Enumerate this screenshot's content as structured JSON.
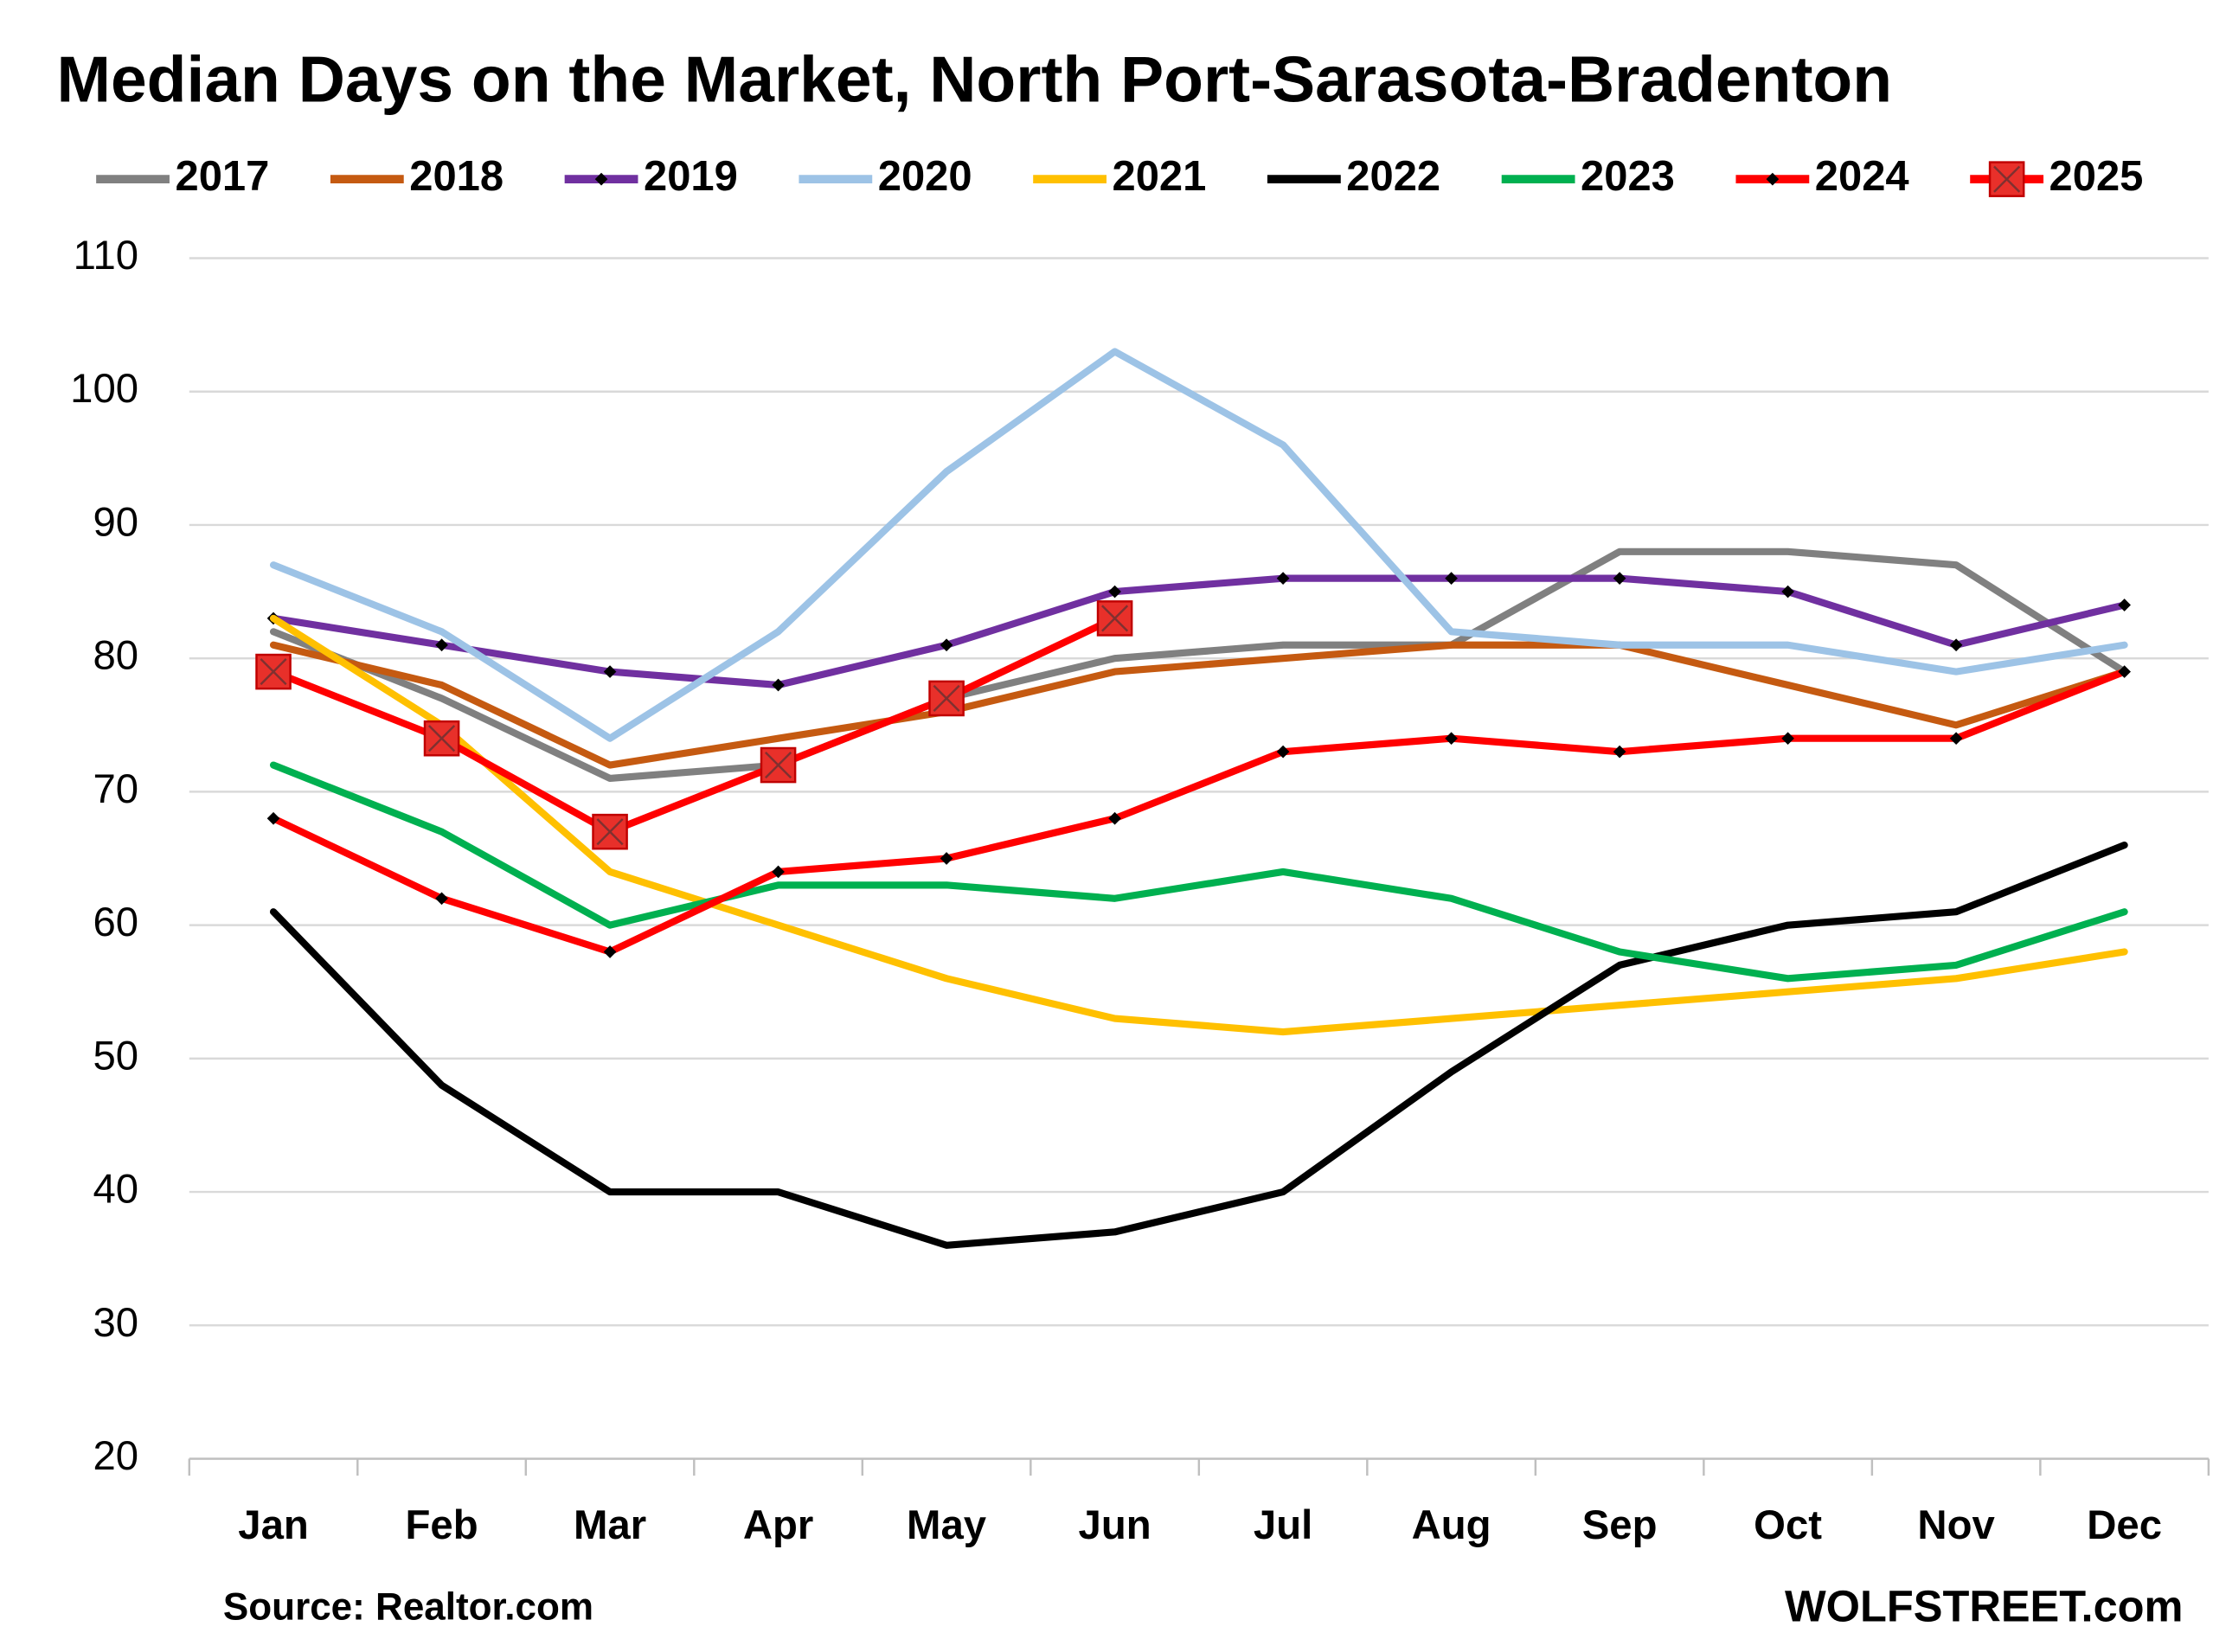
{
  "chart_data": {
    "type": "line",
    "title": "Median Days on the Market, North Port-Sarasota-Bradenton",
    "source": "Source: Realtor.com",
    "credit": "WOLFSTREET.com",
    "categories": [
      "Jan",
      "Feb",
      "Mar",
      "Apr",
      "May",
      "Jun",
      "Jul",
      "Aug",
      "Sep",
      "Oct",
      "Nov",
      "Dec"
    ],
    "ylim": [
      20,
      110
    ],
    "yticks": [
      20,
      30,
      40,
      50,
      60,
      70,
      80,
      90,
      100,
      110
    ],
    "grid": true,
    "legend": "top",
    "series": [
      {
        "name": "2017",
        "color": "#808080",
        "values": [
          82,
          77,
          71,
          72,
          77,
          80,
          81,
          81,
          88,
          88,
          87,
          79
        ]
      },
      {
        "name": "2018",
        "color": "#c55a11",
        "values": [
          81,
          78,
          72,
          74,
          76,
          79,
          80,
          81,
          81,
          78,
          75,
          79
        ]
      },
      {
        "name": "2019",
        "color": "#7030a0",
        "marker": "diamond",
        "values": [
          83,
          81,
          79,
          78,
          81,
          85,
          86,
          86,
          86,
          85,
          81,
          84
        ]
      },
      {
        "name": "2020",
        "color": "#9dc3e6",
        "values": [
          87,
          82,
          74,
          82,
          94,
          103,
          96,
          82,
          81,
          81,
          79,
          81
        ]
      },
      {
        "name": "2021",
        "color": "#ffc000",
        "values": [
          83,
          75,
          64,
          60,
          56,
          53,
          52,
          53,
          54,
          55,
          56,
          58
        ]
      },
      {
        "name": "2022",
        "color": "#000000",
        "values": [
          61,
          48,
          40,
          40,
          36,
          37,
          40,
          49,
          57,
          60,
          61,
          66
        ]
      },
      {
        "name": "2023",
        "color": "#00b050",
        "values": [
          72,
          67,
          60,
          63,
          63,
          62,
          64,
          62,
          58,
          56,
          57,
          61
        ]
      },
      {
        "name": "2024",
        "color": "#ff0000",
        "marker": "diamond",
        "values": [
          68,
          62,
          58,
          64,
          65,
          68,
          73,
          74,
          73,
          74,
          74,
          79
        ]
      },
      {
        "name": "2025",
        "color": "#ff0000",
        "marker": "square",
        "values": [
          79,
          74,
          67,
          72,
          77,
          83,
          null,
          null,
          null,
          null,
          null,
          null
        ]
      }
    ]
  }
}
